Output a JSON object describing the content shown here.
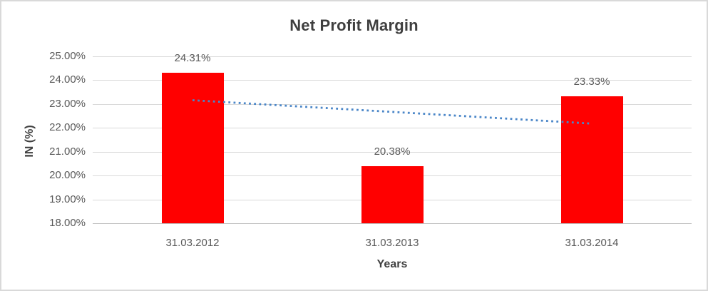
{
  "chart_data": {
    "type": "bar",
    "title": "Net Profit Margin",
    "xlabel": "Years",
    "ylabel": "IN (%)",
    "categories": [
      "31.03.2012",
      "31.03.2013",
      "31.03.2014"
    ],
    "values": [
      24.31,
      20.38,
      23.33
    ],
    "data_labels": [
      "24.31%",
      "20.38%",
      "23.33%"
    ],
    "ylim": [
      18,
      25
    ],
    "y_tick_step": 1,
    "y_tick_labels": [
      "18.00%",
      "19.00%",
      "20.00%",
      "21.00%",
      "22.00%",
      "23.00%",
      "24.00%",
      "25.00%"
    ],
    "grid": true,
    "legend": "none",
    "bar_color": "#FF0000",
    "trendline": {
      "type": "linear",
      "style": "dotted",
      "color": "#4A86C8",
      "start_value": 23.16,
      "end_value": 22.18
    },
    "colors": {
      "gridline": "#D9D9D9",
      "axis_line": "#BFBFBF",
      "tick_text": "#595959",
      "title_text": "#3F3F3F"
    }
  }
}
